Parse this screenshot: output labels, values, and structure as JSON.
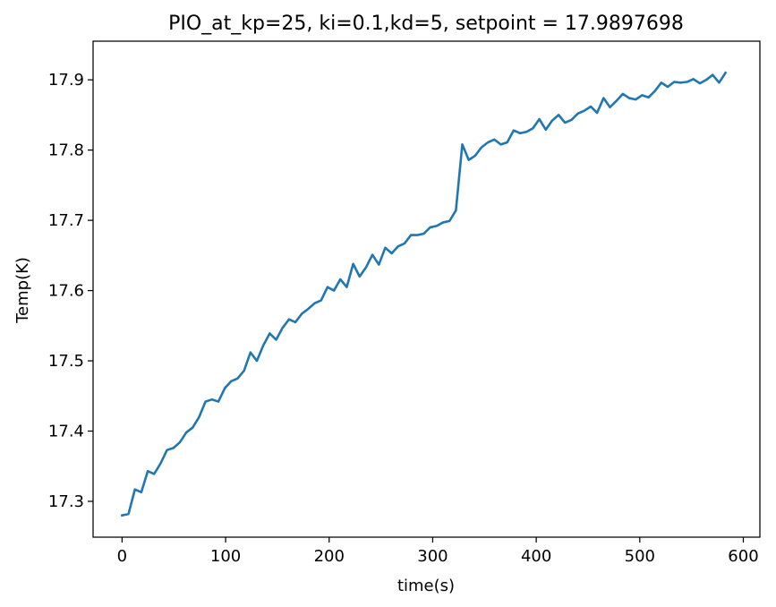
{
  "chart_data": {
    "type": "line",
    "title": "PIO_at_kp=25, ki=0.1,kd=5, setpoint = 17.9897698",
    "xlabel": "time(s)",
    "ylabel": "Temp(K)",
    "xlim": [
      -28,
      616
    ],
    "ylim": [
      17.249,
      17.955
    ],
    "xticks": [
      0,
      100,
      200,
      300,
      400,
      500,
      600
    ],
    "xtick_labels": [
      "0",
      "100",
      "200",
      "300",
      "400",
      "500",
      "600"
    ],
    "yticks": [
      17.3,
      17.4,
      17.5,
      17.6,
      17.7,
      17.8,
      17.9
    ],
    "ytick_labels": [
      "17.3",
      "17.4",
      "17.5",
      "17.6",
      "17.7",
      "17.8",
      "17.9"
    ],
    "grid": false,
    "legend": "none",
    "series": [
      {
        "color": "#1f77b4",
        "x": [
          0,
          6.2,
          12.4,
          18.6,
          24.8,
          31.0,
          37.2,
          43.4,
          49.6,
          55.8,
          62.0,
          68.2,
          74.4,
          80.6,
          86.8,
          93.0,
          99.2,
          105.4,
          111.6,
          117.8,
          124.0,
          130.2,
          136.4,
          142.6,
          148.8,
          155.0,
          161.2,
          167.4,
          173.6,
          179.8,
          186.0,
          192.2,
          198.4,
          204.6,
          210.8,
          217.0,
          223.2,
          229.4,
          235.6,
          241.8,
          248.0,
          254.2,
          260.4,
          266.6,
          272.8,
          279.0,
          285.2,
          291.4,
          297.6,
          303.8,
          310.0,
          316.2,
          322.4,
          328.6,
          334.8,
          341.0,
          347.2,
          353.4,
          359.6,
          365.8,
          372.0,
          378.2,
          384.4,
          390.6,
          396.8,
          403.0,
          409.2,
          415.4,
          421.6,
          427.8,
          434.0,
          440.2,
          446.4,
          452.6,
          458.8,
          465.0,
          471.2,
          477.4,
          483.6,
          489.8,
          496.0,
          502.2,
          508.4,
          514.6,
          520.8,
          527.0,
          533.2,
          539.4,
          545.6,
          551.8,
          558.0,
          564.2,
          570.4,
          576.6,
          582.8
        ],
        "y": [
          17.28,
          17.282,
          17.317,
          17.313,
          17.343,
          17.339,
          17.354,
          17.373,
          17.376,
          17.384,
          17.398,
          17.405,
          17.42,
          17.442,
          17.445,
          17.442,
          17.461,
          17.471,
          17.475,
          17.486,
          17.512,
          17.5,
          17.522,
          17.539,
          17.53,
          17.547,
          17.559,
          17.555,
          17.567,
          17.574,
          17.582,
          17.586,
          17.605,
          17.6,
          17.616,
          17.605,
          17.638,
          17.62,
          17.633,
          17.651,
          17.637,
          17.661,
          17.653,
          17.663,
          17.667,
          17.679,
          17.679,
          17.681,
          17.69,
          17.692,
          17.697,
          17.699,
          17.714,
          17.808,
          17.786,
          17.792,
          17.804,
          17.811,
          17.815,
          17.808,
          17.811,
          17.828,
          17.824,
          17.826,
          17.831,
          17.844,
          17.829,
          17.842,
          17.85,
          17.839,
          17.843,
          17.852,
          17.856,
          17.862,
          17.853,
          17.874,
          17.861,
          17.87,
          17.88,
          17.874,
          17.872,
          17.878,
          17.875,
          17.884,
          17.896,
          17.89,
          17.897,
          17.896,
          17.897,
          17.901,
          17.895,
          17.9,
          17.907,
          17.896,
          17.91
        ]
      }
    ]
  }
}
